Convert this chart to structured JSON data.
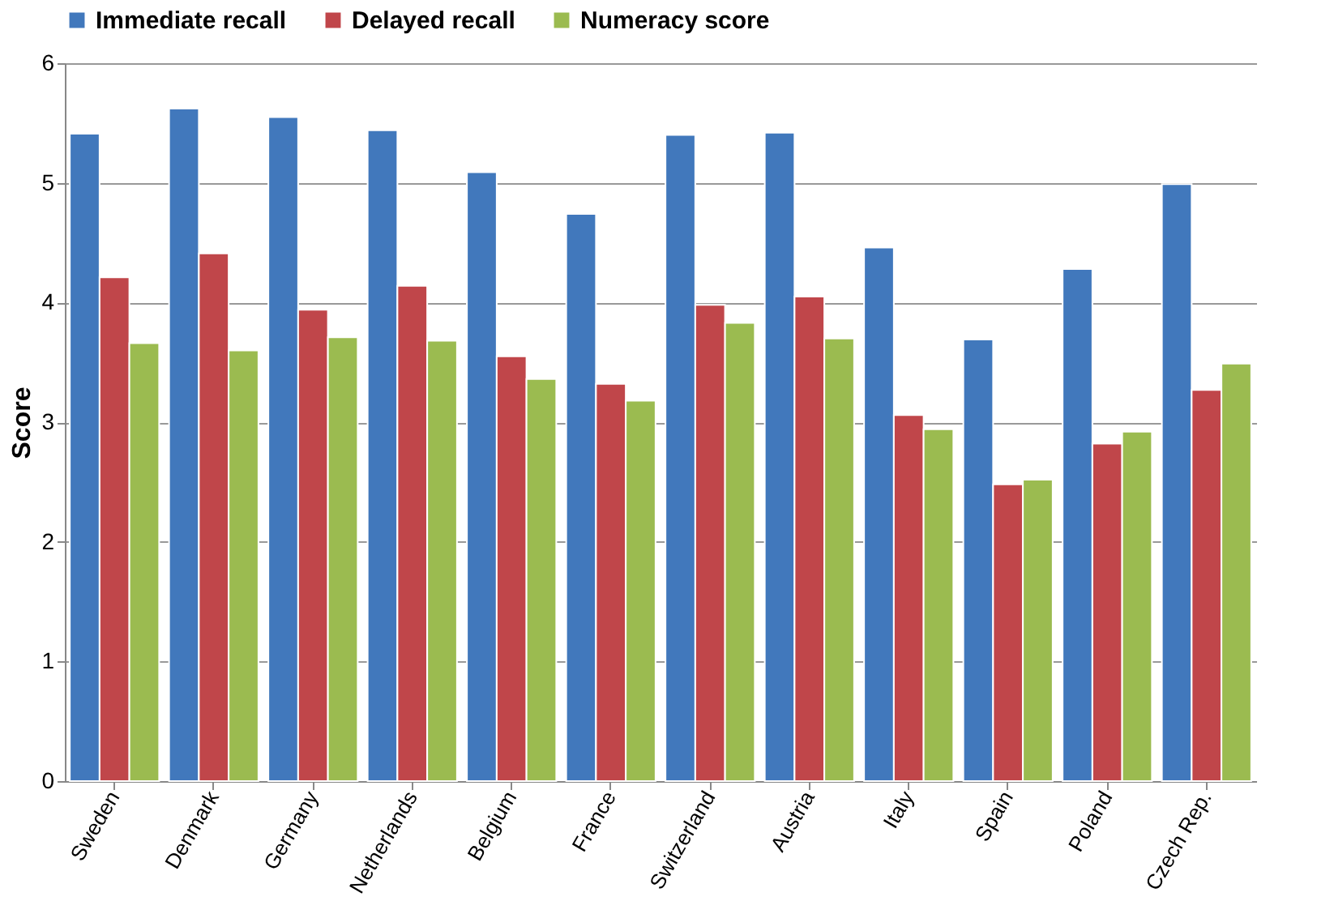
{
  "chart_data": {
    "type": "bar",
    "ylabel": "Score",
    "categories": [
      "Sweden",
      "Denmark",
      "Germany",
      "Netherlands",
      "Belgium",
      "France",
      "Switzerland",
      "Austria",
      "Italy",
      "Spain",
      "Poland",
      "Czech Rep."
    ],
    "series": [
      {
        "name": "Immediate recall",
        "color": "#4178bc",
        "values": [
          5.41,
          5.62,
          5.55,
          5.44,
          5.09,
          4.74,
          5.4,
          5.42,
          4.46,
          3.69,
          4.28,
          4.99
        ]
      },
      {
        "name": "Delayed recall",
        "color": "#c0464a",
        "values": [
          4.21,
          4.41,
          3.94,
          4.14,
          3.55,
          3.32,
          3.98,
          4.05,
          3.06,
          2.48,
          2.82,
          3.27
        ]
      },
      {
        "name": "Numeracy score",
        "color": "#9bbb50",
        "values": [
          3.66,
          3.6,
          3.71,
          3.68,
          3.36,
          3.18,
          3.83,
          3.7,
          2.94,
          2.52,
          2.92,
          3.49
        ]
      }
    ],
    "ylim": [
      0,
      6
    ],
    "yticks": [
      0,
      1,
      2,
      3,
      4,
      5,
      6
    ],
    "grid": "y",
    "legend": "top"
  }
}
